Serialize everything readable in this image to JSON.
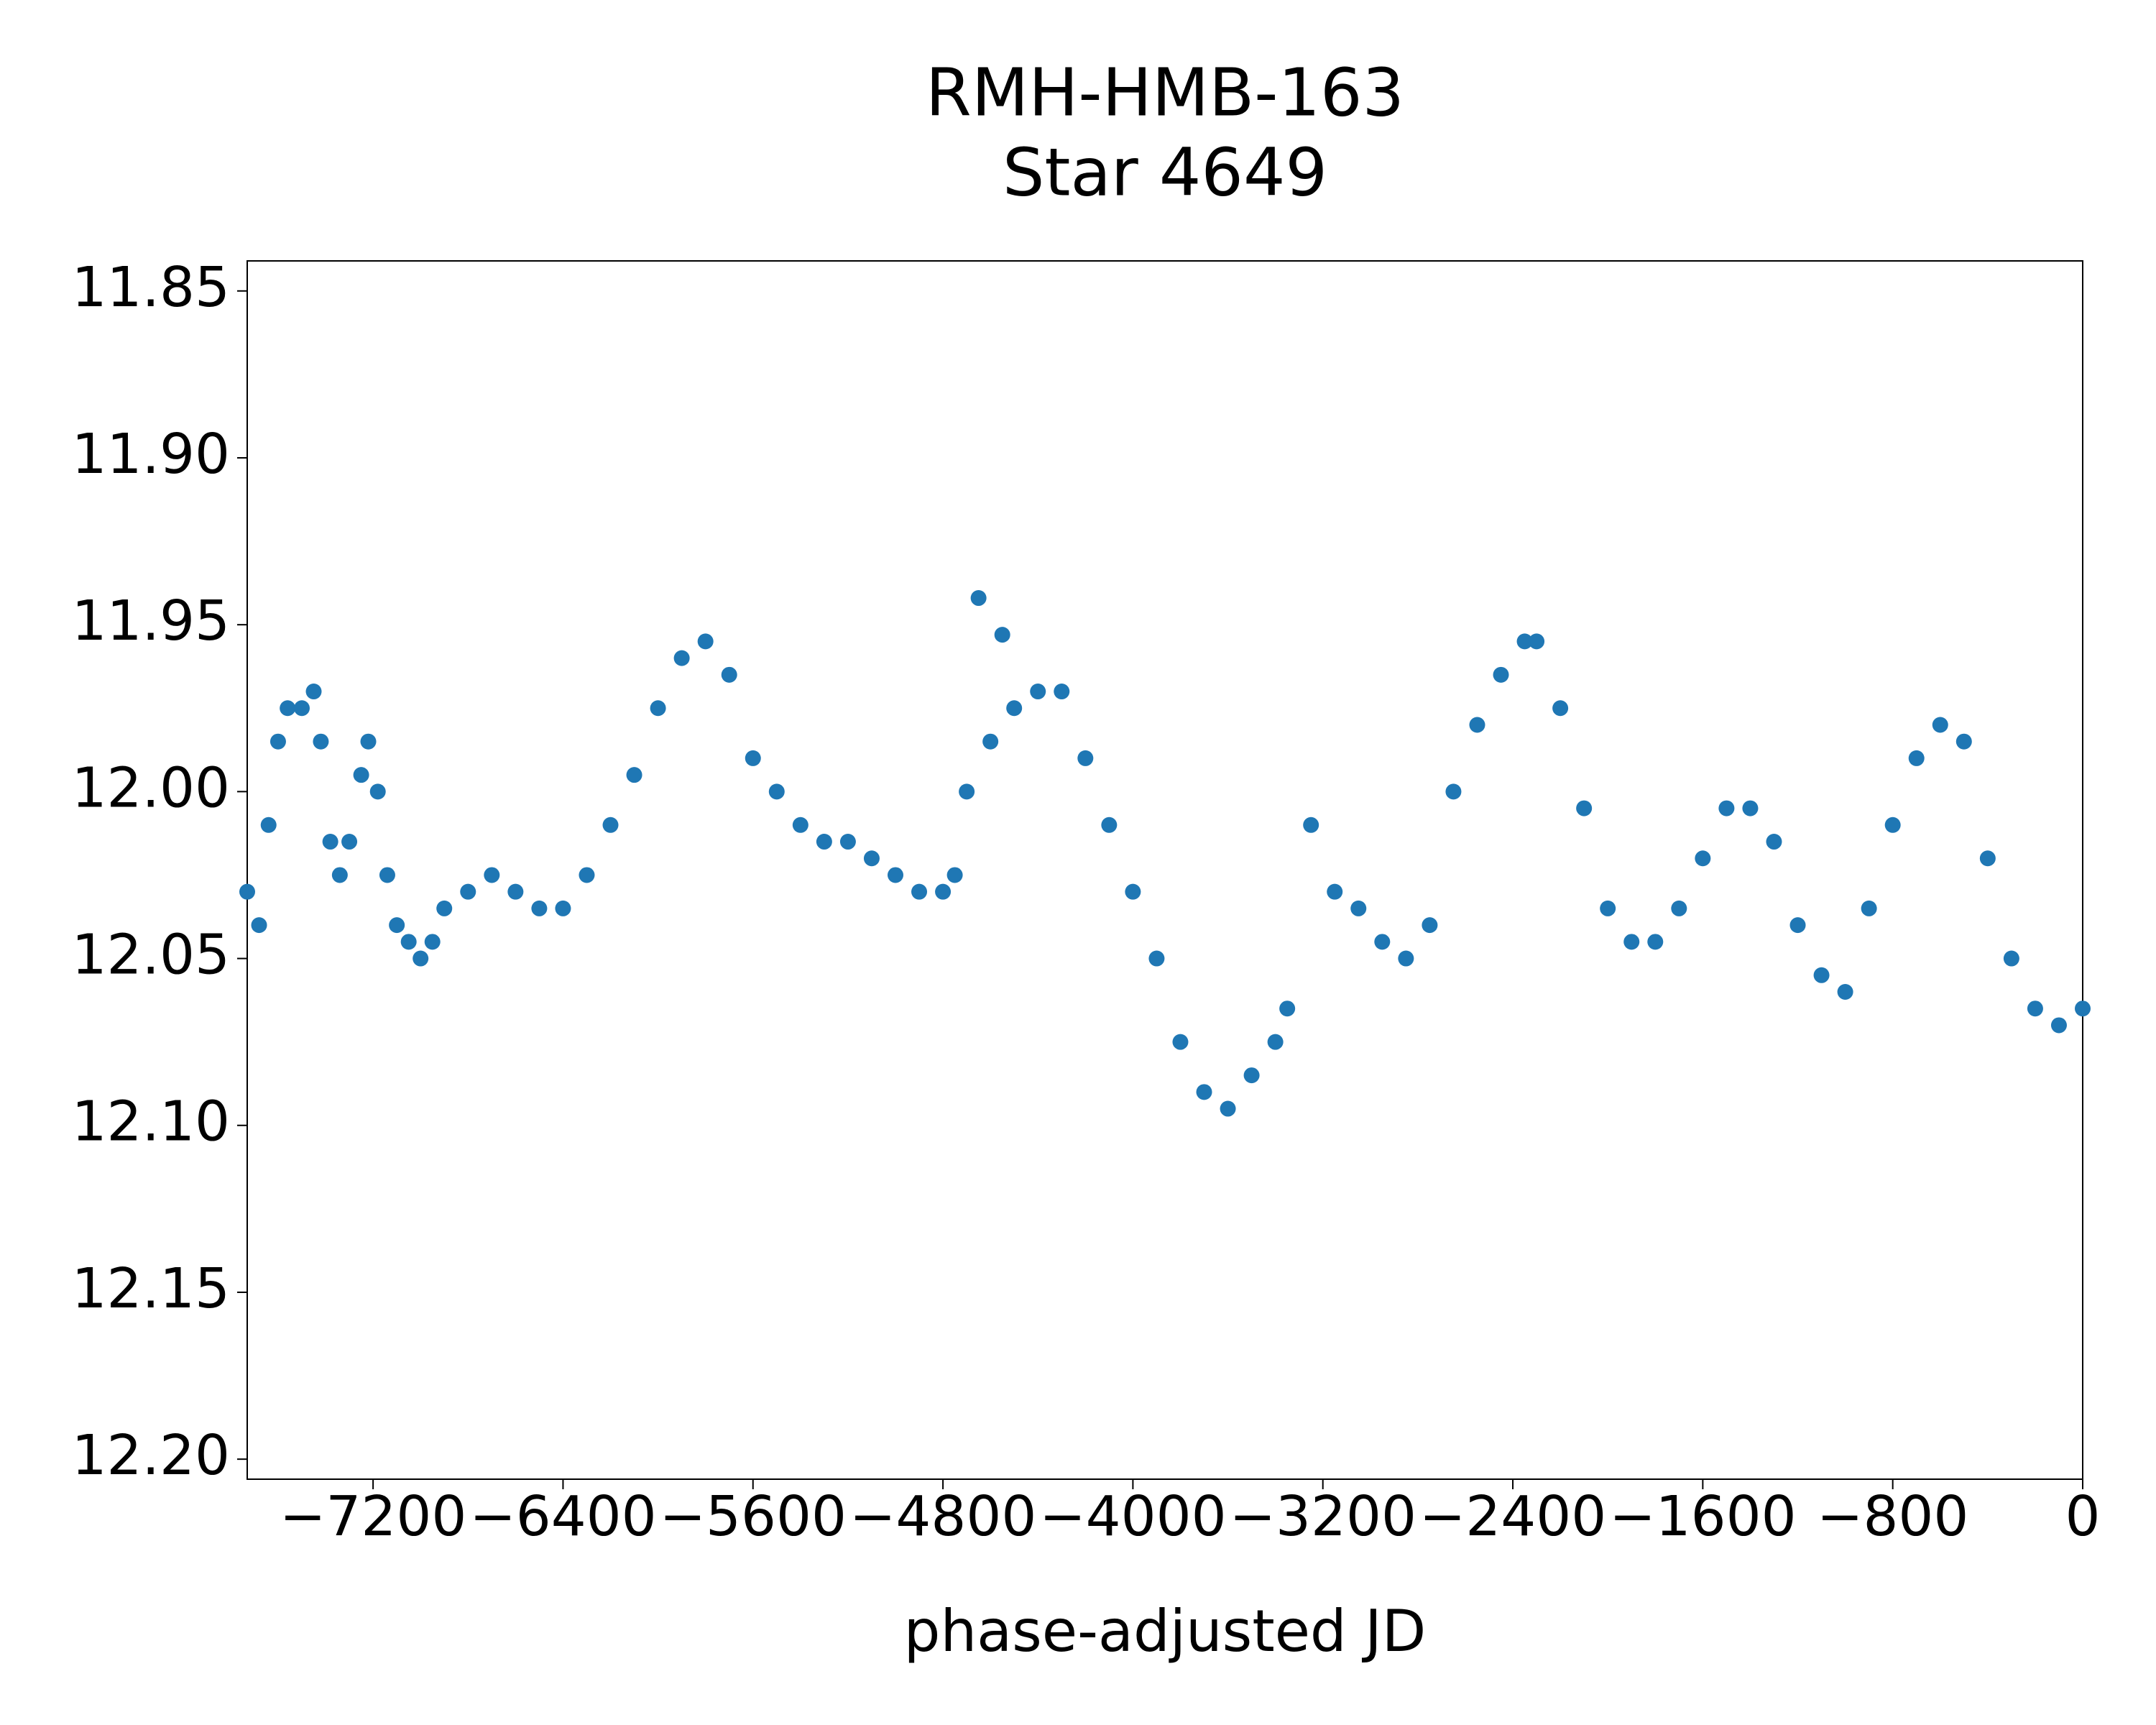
{
  "chart_data": {
    "type": "scatter",
    "title": "RMH-HMB-163",
    "subtitle": "Star 4649",
    "x_label": "phase-adjusted JD",
    "color": "#1f77b4",
    "invert_y": true,
    "xlim": [
      -7730,
      0
    ],
    "ylim": [
      11.841,
      12.206
    ],
    "xticks": [
      {
        "value": -7200,
        "label": "−7200"
      },
      {
        "value": -6400,
        "label": "−6400"
      },
      {
        "value": -5600,
        "label": "−5600"
      },
      {
        "value": -4800,
        "label": "−4800"
      },
      {
        "value": -4000,
        "label": "−4000"
      },
      {
        "value": -3200,
        "label": "−3200"
      },
      {
        "value": -2400,
        "label": "−2400"
      },
      {
        "value": -1600,
        "label": "−1600"
      },
      {
        "value": -800,
        "label": "−800"
      },
      0
    ],
    "yticks": [
      11.85,
      {
        "value": 11.9,
        "label": "11.90"
      },
      11.95,
      {
        "value": 12.0,
        "label": "12.00"
      },
      12.05,
      {
        "value": 12.1,
        "label": "12.10"
      },
      12.15,
      {
        "value": 12.2,
        "label": "12.20"
      }
    ],
    "x": [
      -7730,
      -7680,
      -7640,
      -7600,
      -7560,
      -7500,
      -7450,
      -7420,
      -7380,
      -7340,
      -7300,
      -7250,
      -7220,
      -7180,
      -7140,
      -7100,
      -7050,
      -7000,
      -6950,
      -6900,
      -6800,
      -6700,
      -6600,
      -6500,
      -6400,
      -6300,
      -6200,
      -6100,
      -6000,
      -5900,
      -5800,
      -5700,
      -5600,
      -5500,
      -5400,
      -5300,
      -5200,
      -5100,
      -5000,
      -4900,
      -4800,
      -4750,
      -4700,
      -4650,
      -4600,
      -4550,
      -4500,
      -4400,
      -4300,
      -4200,
      -4100,
      -4000,
      -3900,
      -3800,
      -3700,
      -3600,
      -3500,
      -3400,
      -3350,
      -3250,
      -3150,
      -3050,
      -2950,
      -2850,
      -2750,
      -2650,
      -2550,
      -2450,
      -2350,
      -2300,
      -2200,
      -2100,
      -2000,
      -1900,
      -1800,
      -1700,
      -1600,
      -1500,
      -1400,
      -1300,
      -1200,
      -1100,
      -1000,
      -900,
      -800,
      -700,
      -600,
      -500,
      -400,
      -300,
      -200,
      -100,
      0
    ],
    "values": [
      12.03,
      12.04,
      12.01,
      11.985,
      11.975,
      11.975,
      11.97,
      11.985,
      12.015,
      12.025,
      12.015,
      11.995,
      11.985,
      12.0,
      12.025,
      12.04,
      12.045,
      12.05,
      12.045,
      12.035,
      12.03,
      12.025,
      12.03,
      12.035,
      12.035,
      12.025,
      12.01,
      11.995,
      11.975,
      11.96,
      11.955,
      11.965,
      11.99,
      12.0,
      12.01,
      12.015,
      12.015,
      12.02,
      12.025,
      12.03,
      12.03,
      12.025,
      12.0,
      11.942,
      11.985,
      11.953,
      11.975,
      11.97,
      11.97,
      11.99,
      12.01,
      12.03,
      12.05,
      12.075,
      12.09,
      12.095,
      12.085,
      12.075,
      12.065,
      12.01,
      12.03,
      12.035,
      12.045,
      12.05,
      12.04,
      12.0,
      11.98,
      11.965,
      11.955,
      11.955,
      11.975,
      12.005,
      12.035,
      12.045,
      12.045,
      12.035,
      12.02,
      12.005,
      12.005,
      12.015,
      12.04,
      12.055,
      12.06,
      12.035,
      12.01,
      11.99,
      11.98,
      11.985,
      12.02,
      12.05,
      12.065,
      12.07,
      12.065
    ]
  }
}
